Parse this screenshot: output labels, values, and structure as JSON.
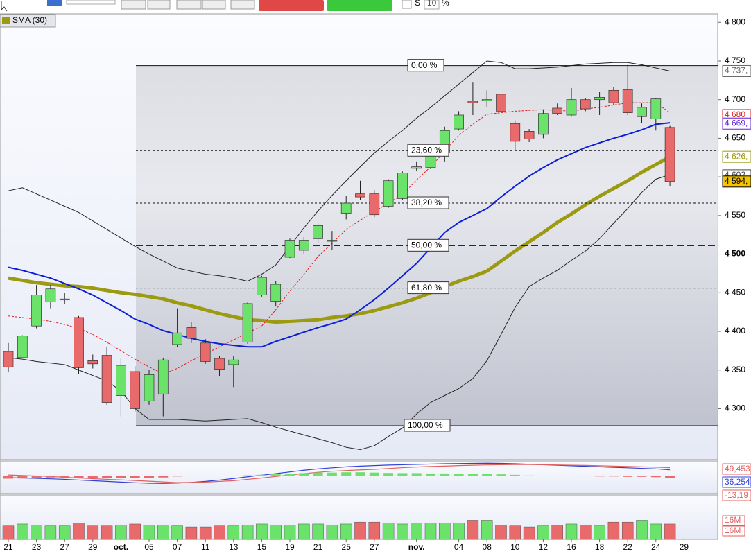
{
  "toolbar": {
    "checkbox_label": "S",
    "period": "10",
    "unit": "%"
  },
  "chart_data": {
    "type": "candlestick",
    "legend": "SMA (30)",
    "categories": [
      "21",
      null,
      "23",
      null,
      "27",
      null,
      "29",
      null,
      "oct.",
      null,
      "05",
      null,
      "07",
      null,
      "11",
      null,
      "13",
      null,
      "15",
      null,
      "19",
      null,
      "21",
      null,
      "25",
      null,
      "27",
      null,
      null,
      "nov.",
      null,
      null,
      "04",
      null,
      "08",
      null,
      "10",
      null,
      "12",
      null,
      "16",
      null,
      "18",
      null,
      "22",
      null,
      "24",
      null,
      "29"
    ],
    "open": [
      4374,
      4366,
      4407,
      4438,
      4442,
      4418,
      4362,
      4369,
      4317,
      4348,
      4310,
      4319,
      4383,
      4405,
      4385,
      4365,
      4357,
      4386,
      4447,
      4439,
      4496,
      4505,
      4520,
      4518,
      4553,
      4578,
      4578,
      4562,
      4572,
      4611,
      4612,
      4631,
      4662,
      4698,
      4700,
      4707,
      4669,
      4659,
      4655,
      4689,
      4680,
      4700,
      4700,
      4712,
      4713,
      4678,
      4675,
      4664,
      null
    ],
    "high": [
      4385,
      4395,
      4460,
      4460,
      4450,
      4420,
      4370,
      4380,
      4365,
      4355,
      4350,
      4366,
      4430,
      4412,
      4390,
      4368,
      4368,
      4438,
      4472,
      4465,
      4520,
      4522,
      4540,
      4530,
      4575,
      4595,
      4583,
      4597,
      4607,
      4620,
      4640,
      4665,
      4685,
      4722,
      4712,
      4710,
      4673,
      4662,
      4687,
      4695,
      4715,
      4702,
      4710,
      4716,
      4745,
      4695,
      4702,
      4666,
      null
    ],
    "low": [
      4347,
      4366,
      4404,
      4430,
      4435,
      4345,
      4352,
      4305,
      4290,
      4295,
      4305,
      4290,
      4380,
      4385,
      4358,
      4342,
      4328,
      4384,
      4445,
      4433,
      4495,
      4500,
      4515,
      4505,
      4545,
      4570,
      4548,
      4560,
      4570,
      4608,
      4610,
      4620,
      4660,
      4680,
      4690,
      4672,
      4635,
      4645,
      4650,
      4680,
      4678,
      4685,
      4680,
      4693,
      4680,
      4670,
      4660,
      4588,
      null
    ],
    "close": [
      4354,
      4394,
      4447,
      4455,
      4442,
      4353,
      4358,
      4308,
      4356,
      4300,
      4344,
      4363,
      4398,
      4391,
      4361,
      4351,
      4363,
      4436,
      4470,
      4461,
      4518,
      4518,
      4537,
      4518,
      4566,
      4574,
      4551,
      4595,
      4605,
      4613,
      4630,
      4660,
      4680,
      4696,
      4700,
      4685,
      4646,
      4649,
      4682,
      4682,
      4700,
      4688,
      4703,
      4696,
      4683,
      4690,
      4701,
      4594,
      null
    ],
    "up_color": "#6be36b",
    "down_color": "#e86a6a",
    "series": [
      {
        "name": "SMA (30)",
        "color": "#9b9a10",
        "width": 5,
        "values": [
          4469,
          4466,
          4463,
          4461,
          4459,
          4458,
          4456,
          4453,
          4450,
          4448,
          4445,
          4442,
          4437,
          4433,
          4428,
          4423,
          4419,
          4415,
          4414,
          4412,
          4413,
          4414,
          4415,
          4418,
          4420,
          4423,
          4427,
          4432,
          4437,
          4443,
          4450,
          4458,
          4465,
          4471,
          4478,
          4491,
          4504,
          4516,
          4528,
          4541,
          4552,
          4564,
          4575,
          4585,
          4595,
          4606,
          4616,
          4626,
          null
        ]
      },
      {
        "color": "#0c1fd8",
        "width": 2,
        "values": [
          4483,
          4479,
          4474,
          4469,
          4462,
          4455,
          4447,
          4437,
          4427,
          4416,
          4409,
          4401,
          4396,
          4391,
          4387,
          4384,
          4382,
          4380,
          4380,
          4387,
          4393,
          4399,
          4405,
          4410,
          4416,
          4428,
          4441,
          4456,
          4472,
          4488,
          4508,
          4528,
          4541,
          4550,
          4559,
          4574,
          4588,
          4601,
          4612,
          4622,
          4630,
          4638,
          4644,
          4650,
          4655,
          4661,
          4668,
          4670,
          null
        ]
      },
      {
        "color": "#e01c1c",
        "width": 1,
        "dashed": true,
        "values": [
          4420,
          4418,
          4416,
          4413,
          4409,
          4404,
          4396,
          4386,
          4375,
          4364,
          4354,
          4345,
          4352,
          4362,
          4371,
          4380,
          4389,
          4398,
          4407,
          4428,
          4452,
          4474,
          4497,
          4514,
          4532,
          4544,
          4555,
          4566,
          4577,
          4596,
          4613,
          4633,
          4654,
          4668,
          4681,
          4683,
          4685,
          4686,
          4687,
          4686,
          4685,
          4688,
          4690,
          4693,
          4696,
          4696,
          4696,
          4683,
          null
        ]
      },
      {
        "color": "#222222",
        "width": 1,
        "values": [
          4582,
          4586,
          4578,
          4570,
          4562,
          4554,
          4543,
          4532,
          4521,
          4510,
          4500,
          4491,
          4482,
          4478,
          4474,
          4472,
          4469,
          4465,
          4474,
          4486,
          4510,
          4534,
          4556,
          4576,
          4595,
          4613,
          4631,
          4646,
          4660,
          4676,
          4690,
          4705,
          4720,
          4735,
          4750,
          4748,
          4740,
          4740,
          4741,
          4742,
          4744,
          4746,
          4747,
          4748,
          4748,
          4745,
          4741,
          4737,
          null
        ]
      },
      {
        "color": "#222222",
        "width": 1,
        "values": [
          4366,
          4364,
          4361,
          4359,
          4357,
          4350,
          4343,
          4336,
          4323,
          4300,
          4286,
          4286,
          4286,
          4285,
          4284,
          4285,
          4286,
          4287,
          4282,
          4276,
          4271,
          4266,
          4261,
          4256,
          4250,
          4247,
          4252,
          4264,
          4275,
          4293,
          4308,
          4317,
          4326,
          4339,
          4362,
          4396,
          4431,
          4458,
          4469,
          4479,
          4492,
          4504,
          4520,
          4540,
          4559,
          4580,
          4597,
          4603,
          null
        ]
      }
    ],
    "ylim": [
      4234,
      4811
    ],
    "yticks": [
      {
        "value": 4800,
        "label": "4 800"
      },
      {
        "value": 4750,
        "label": "4 750"
      },
      {
        "value": 4700,
        "label": "4 700"
      },
      {
        "value": 4650,
        "label": "4 650"
      },
      {
        "value": 4600,
        "label": "4 600"
      },
      {
        "value": 4550,
        "label": "4 550"
      },
      {
        "value": 4500,
        "label": "4 500"
      },
      {
        "value": 4450,
        "label": "4 450"
      },
      {
        "value": 4400,
        "label": "4 400"
      },
      {
        "value": 4350,
        "label": "4 350"
      },
      {
        "value": 4300,
        "label": "4 300"
      }
    ],
    "price_tags": [
      {
        "value": 4737,
        "label": "4 737,",
        "color": "#666666",
        "bg": "#ffffff"
      },
      {
        "value": 4680,
        "label": "4 680",
        "color": "#e01c1c",
        "bg": "#ffffff"
      },
      {
        "value": 4669,
        "label": "4 669,",
        "color": "#5a1ed8",
        "bg": "#ffffff"
      },
      {
        "value": 4626,
        "label": "4 626,",
        "color": "#9b9a10",
        "bg": "#ffffff"
      },
      {
        "value": 4602,
        "label": "4 602",
        "color": "#444444",
        "bg": "#ffffff"
      },
      {
        "value": 4594,
        "label": "4 594,",
        "color": "#000000",
        "bg": "#f5c400"
      }
    ],
    "fibonacci": [
      {
        "value": 4744,
        "label": "0,00 %"
      },
      {
        "value": 4634,
        "label": "23,60 %"
      },
      {
        "value": 4566,
        "label": "38,20 %"
      },
      {
        "value": 4511,
        "label": "50,00 %"
      },
      {
        "value": 4456,
        "label": "61,80 %"
      },
      {
        "value": 4278,
        "label": "100,00 %"
      }
    ],
    "macd": {
      "ylim": [
        -100,
        80
      ],
      "histogram": [
        -16,
        -15,
        -12,
        -9,
        -7,
        -10,
        -12,
        -13,
        -13,
        -13,
        -12,
        -9,
        -3,
        0,
        0,
        0,
        0,
        4,
        7,
        10,
        13,
        17,
        20,
        20,
        22,
        22,
        20,
        18,
        17,
        17,
        15,
        15,
        13,
        13,
        12,
        10,
        7,
        3,
        2,
        2,
        0,
        -2,
        -3,
        -3,
        -5,
        -5,
        -7,
        -13.19,
        null
      ],
      "series": [
        {
          "color": "#3040d8",
          "values": [
            -10,
            -12,
            -14,
            -17,
            -20,
            -24,
            -28,
            -32,
            -36,
            -40,
            -43,
            -44,
            -42,
            -38,
            -32,
            -24,
            -15,
            -5,
            5,
            14,
            24,
            34,
            42,
            48,
            54,
            58,
            61,
            64,
            66,
            68,
            70,
            72,
            73,
            74,
            75,
            74,
            72,
            69,
            66,
            63,
            60,
            57,
            54,
            51,
            48,
            45,
            42,
            36.254,
            null
          ]
        },
        {
          "color": "#e06060",
          "values": [
            6,
            3,
            0,
            -3,
            -8,
            -12,
            -16,
            -20,
            -23,
            -27,
            -31,
            -35,
            -39,
            -38,
            -36,
            -32,
            -28,
            -20,
            -12,
            -3,
            6,
            14,
            22,
            28,
            32,
            36,
            39,
            44,
            49,
            53,
            56,
            58,
            61,
            63,
            65,
            66,
            67,
            67,
            66,
            65,
            63,
            62,
            60,
            58,
            56,
            54,
            52,
            49.453,
            null
          ]
        }
      ],
      "tags": [
        "49,453",
        "36,254",
        "-13,19"
      ]
    },
    "volume": {
      "ylim": [
        0,
        45
      ],
      "values": [
        14,
        16,
        15,
        14,
        14,
        17,
        14,
        14,
        15,
        16,
        15,
        15,
        14,
        13,
        13,
        14,
        14,
        15,
        16,
        15,
        15,
        16,
        16,
        15,
        16,
        18,
        18,
        17,
        16,
        17,
        17,
        17,
        17,
        20,
        20,
        15,
        14,
        13,
        14,
        15,
        16,
        15,
        14,
        18,
        18,
        20,
        16,
        16,
        null
      ],
      "tags": [
        "16M",
        "16M"
      ]
    }
  }
}
